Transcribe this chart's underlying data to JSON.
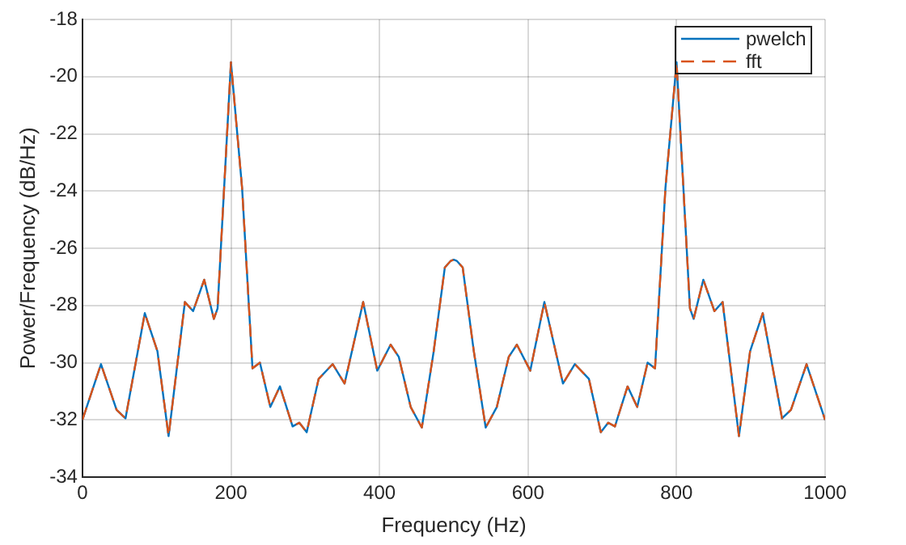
{
  "chart_data": {
    "type": "line",
    "xlabel": "Frequency (Hz)",
    "ylabel": "Power/Frequency (dB/Hz)",
    "x": [
      0,
      25,
      46,
      58,
      84,
      101,
      116,
      138,
      149,
      164,
      177,
      182,
      200,
      215,
      229,
      239,
      253,
      266,
      283,
      292,
      302,
      318,
      337,
      353,
      378,
      397,
      415,
      426,
      442,
      457,
      473,
      488,
      496,
      500,
      504,
      512,
      527,
      543,
      558,
      574,
      585,
      603,
      622,
      647,
      663,
      682,
      698,
      708,
      717,
      734,
      747,
      761,
      771,
      785,
      800,
      818,
      823,
      836,
      851,
      862,
      884,
      899,
      916,
      942,
      954,
      975,
      1000
    ],
    "series": [
      {
        "name": "pwelch",
        "color": "#0072bd",
        "line_style": "solid",
        "values": [
          -32.0,
          -30.05,
          -31.65,
          -31.95,
          -28.27,
          -29.6,
          -32.57,
          -27.88,
          -28.2,
          -27.1,
          -28.47,
          -28.1,
          -19.5,
          -23.9,
          -30.2,
          -30.0,
          -31.55,
          -30.83,
          -32.23,
          -32.1,
          -32.43,
          -30.57,
          -30.05,
          -30.73,
          -27.88,
          -30.28,
          -29.37,
          -29.8,
          -31.55,
          -32.27,
          -29.6,
          -26.67,
          -26.44,
          -26.4,
          -26.44,
          -26.67,
          -29.6,
          -32.27,
          -31.55,
          -29.8,
          -29.37,
          -30.28,
          -27.88,
          -30.73,
          -30.05,
          -30.57,
          -32.43,
          -32.1,
          -32.23,
          -30.83,
          -31.55,
          -30.0,
          -30.2,
          -23.9,
          -19.5,
          -28.1,
          -28.47,
          -27.1,
          -28.2,
          -27.88,
          -32.57,
          -29.6,
          -28.27,
          -31.95,
          -31.65,
          -30.05,
          -32.0
        ]
      },
      {
        "name": "fft",
        "color": "#d95319",
        "line_style": "dashed",
        "values": [
          -32.0,
          -30.05,
          -31.65,
          -31.95,
          -28.27,
          -29.6,
          -32.57,
          -27.88,
          -28.2,
          -27.1,
          -28.47,
          -28.1,
          -19.5,
          -23.9,
          -30.2,
          -30.0,
          -31.55,
          -30.83,
          -32.23,
          -32.1,
          -32.43,
          -30.57,
          -30.05,
          -30.73,
          -27.88,
          -30.28,
          -29.37,
          -29.8,
          -31.55,
          -32.27,
          -29.6,
          -26.67,
          -26.44,
          -26.4,
          -26.44,
          -26.67,
          -29.6,
          -32.27,
          -31.55,
          -29.8,
          -29.37,
          -30.28,
          -27.88,
          -30.73,
          -30.05,
          -30.57,
          -32.43,
          -32.1,
          -32.23,
          -30.83,
          -31.55,
          -30.0,
          -30.2,
          -23.9,
          -19.5,
          -28.1,
          -28.47,
          -27.1,
          -28.2,
          -27.88,
          -32.57,
          -29.6,
          -28.27,
          -31.95,
          -31.65,
          -30.05,
          -32.0
        ]
      }
    ],
    "xlim": [
      0,
      1000
    ],
    "xticks": [
      0,
      200,
      400,
      600,
      800,
      1000
    ],
    "ylim": [
      -34,
      -18
    ],
    "yticks": [
      -34,
      -32,
      -30,
      -28,
      -26,
      -24,
      -22,
      -20,
      -18
    ],
    "grid": true,
    "legend": "top right",
    "marker": "none"
  }
}
